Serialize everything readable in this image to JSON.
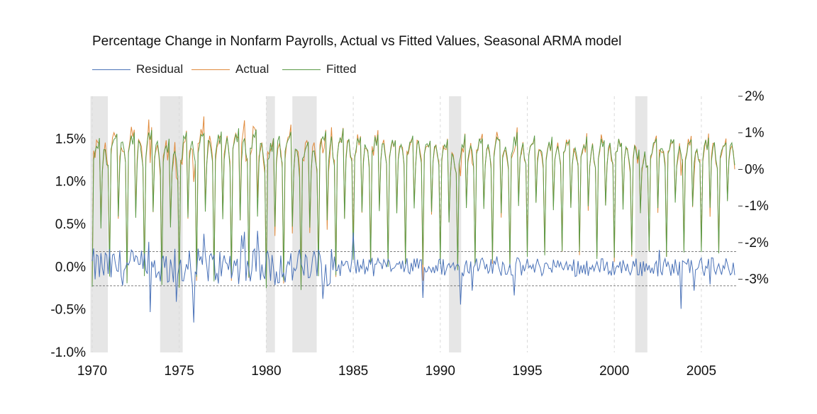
{
  "title": "Percentage Change in Nonfarm Payrolls, Actual vs Fitted Values, Seasonal ARMA model",
  "legend": [
    {
      "name": "Residual",
      "color": "#4a72b8"
    },
    {
      "name": "Actual",
      "color": "#e08a3c"
    },
    {
      "name": "Fitted",
      "color": "#5a9a46"
    }
  ],
  "chart_data": {
    "type": "line",
    "title": "Percentage Change in Nonfarm Payrolls, Actual vs Fitted Values, Seasonal ARMA model",
    "xlabel": "",
    "ylabel": "",
    "x_range": [
      1970,
      2007
    ],
    "x_ticks": [
      "1970",
      "1975",
      "1980",
      "1985",
      "1990",
      "1995",
      "2000",
      "2005"
    ],
    "y_left": {
      "range": [
        -1.0,
        2.0
      ],
      "ticks": [
        -1.0,
        -0.5,
        0.0,
        0.5,
        1.0,
        1.5
      ],
      "tick_labels": [
        "-1.0%",
        "-0.5%",
        "0.0%",
        "0.5%",
        "1.0%",
        "1.5%"
      ],
      "series": [
        "Residual"
      ]
    },
    "y_right": {
      "range": [
        -5.0,
        2.0
      ],
      "ticks": [
        2,
        1,
        0,
        -1,
        -2,
        -3
      ],
      "tick_labels": [
        "2%",
        "1%",
        "0%",
        "-1%",
        "-2%",
        "-3%"
      ],
      "series": [
        "Actual",
        "Fitted"
      ]
    },
    "recessions": [
      [
        1969.9,
        1970.9
      ],
      [
        1973.9,
        1975.2
      ],
      [
        1980.0,
        1980.5
      ],
      [
        1981.5,
        1982.9
      ],
      [
        1990.5,
        1991.2
      ],
      [
        2001.2,
        2001.9
      ]
    ],
    "residual_band": [
      -0.22,
      0.18
    ],
    "grid": "vertical-dashed",
    "legend_position": "top-left",
    "series": [
      {
        "name": "Residual",
        "axis": "left",
        "color": "#4a72b8"
      },
      {
        "name": "Actual",
        "axis": "right",
        "color": "#e08a3c"
      },
      {
        "name": "Fitted",
        "axis": "right",
        "color": "#5a9a46"
      }
    ],
    "seasonal_pattern_pct": [
      -2.6,
      0.4,
      0.6,
      0.8,
      0.7,
      0.9,
      -1.1,
      0.2,
      0.6,
      0.7,
      0.4,
      0.1
    ]
  }
}
